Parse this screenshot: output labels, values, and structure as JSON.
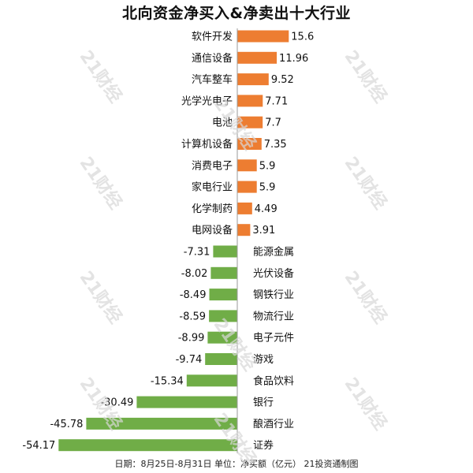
{
  "chart_data": {
    "type": "bar",
    "orientation": "horizontal",
    "title": "北向资金净买入&净卖出十大行业",
    "footer": "日期：8月25日-8月31日  单位：净买额（亿元）  21投资通制图",
    "watermark": "21财经",
    "colors": {
      "positive": "#ED7D31",
      "negative": "#70AD47"
    },
    "categories": [
      "软件开发",
      "通信设备",
      "汽车整车",
      "光学光电子",
      "电池",
      "计算机设备",
      "消费电子",
      "家电行业",
      "化学制药",
      "电网设备",
      "能源金属",
      "光伏设备",
      "钢铁行业",
      "物流行业",
      "电子元件",
      "游戏",
      "食品饮料",
      "银行",
      "酿酒行业",
      "证券"
    ],
    "value_labels": [
      "15.6",
      "11.96",
      "9.52",
      "7.71",
      "7.7",
      "7.35",
      "5.9",
      "5.9",
      "4.49",
      "3.91",
      "-7.31",
      "-8.02",
      "-8.49",
      "-8.59",
      "-8.99",
      "-9.74",
      "-15.34",
      "-30.49",
      "-45.78",
      "-54.17"
    ],
    "values": [
      15.6,
      11.96,
      9.52,
      7.71,
      7.7,
      7.35,
      5.9,
      5.9,
      4.49,
      3.91,
      -7.31,
      -8.02,
      -8.49,
      -8.59,
      -8.99,
      -9.74,
      -15.34,
      -30.49,
      -45.78,
      -54.17
    ],
    "xlim": [
      -54.17,
      15.6
    ],
    "grid": false,
    "legend": "none"
  }
}
